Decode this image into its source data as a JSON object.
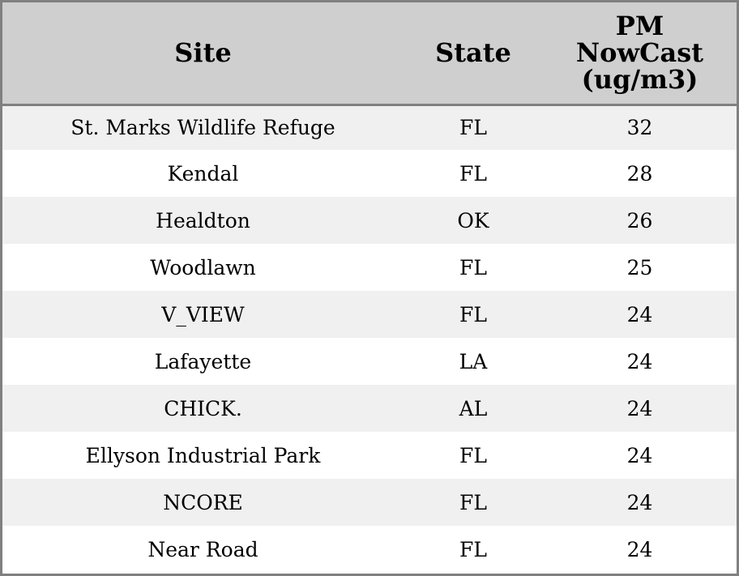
{
  "table": {
    "headers": {
      "site": "Site",
      "state": "State",
      "pm_line1": "PM",
      "pm_line2": "NowCast",
      "pm_line3": "(ug/m3)"
    },
    "rows": [
      {
        "site": "St. Marks Wildlife Refuge",
        "state": "FL",
        "pm": "32"
      },
      {
        "site": "Kendal",
        "state": "FL",
        "pm": "28"
      },
      {
        "site": "Healdton",
        "state": "OK",
        "pm": "26"
      },
      {
        "site": "Woodlawn",
        "state": "FL",
        "pm": "25"
      },
      {
        "site": "V_VIEW",
        "state": "FL",
        "pm": "24"
      },
      {
        "site": "Lafayette",
        "state": "LA",
        "pm": "24"
      },
      {
        "site": "CHICK.",
        "state": "AL",
        "pm": "24"
      },
      {
        "site": "Ellyson Industrial Park",
        "state": "FL",
        "pm": "24"
      },
      {
        "site": "NCORE",
        "state": "FL",
        "pm": "24"
      },
      {
        "site": "Near Road",
        "state": "FL",
        "pm": "24"
      }
    ]
  },
  "colors": {
    "header_bg": "#cfcfcf",
    "row_alt_bg": "#f0f0f0",
    "row_bg": "#ffffff",
    "border": "#808080"
  }
}
